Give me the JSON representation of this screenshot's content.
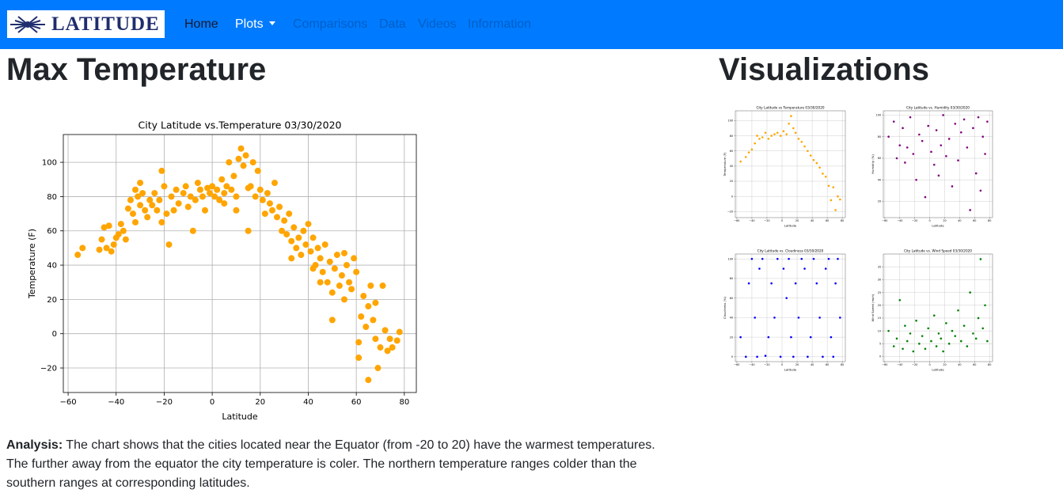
{
  "navbar": {
    "brand": "LATITUDE",
    "links": [
      "Home",
      "Plots",
      "Comparisons",
      "Data",
      "Videos",
      "Information"
    ]
  },
  "main": {
    "heading": "Max Temperature",
    "analysis": {
      "label": "Analysis:",
      "text": "The chart shows that the cities located near the Equator (from -20 to 20) have the warmest temperatures. The further away from the equator the city temperature is coler. The northern temperature ranges colder than the southern ranges at corresponding latitudes."
    }
  },
  "sidebar": {
    "heading": "Visualizations"
  },
  "chart_data": [
    {
      "type": "scatter",
      "title": "City Latitude vs.Temperature 03/30/2020",
      "x_label": "Latitude",
      "y_label": "Temperature (F)",
      "color": "#ffa500",
      "grid": true,
      "xlim": [
        -62,
        85
      ],
      "ylim": [
        -34.3,
        116.2
      ],
      "xticks": [
        {
          "value": -60,
          "label": "−60"
        },
        {
          "value": -40,
          "label": "−40"
        },
        {
          "value": -20,
          "label": "−20"
        },
        0,
        20,
        40,
        60,
        80
      ],
      "yticks": [
        {
          "value": -20,
          "label": "−20"
        },
        0,
        20,
        40,
        60,
        80,
        100
      ],
      "x": [
        -56,
        -54,
        -47,
        -46,
        -45,
        -44,
        -43,
        -42,
        -41,
        -40,
        -39,
        -38,
        -37,
        -36,
        -35,
        -34,
        -33,
        -32,
        -32,
        -31,
        -30,
        -29,
        -28,
        -27,
        -26,
        -25,
        -24,
        -23,
        -22,
        -21,
        -21,
        -20,
        -19,
        -18,
        -17,
        -16,
        -15,
        -14,
        -12,
        -11,
        -10,
        -9,
        -8,
        -7,
        -6,
        -5,
        -4,
        -3,
        -2,
        -1,
        0,
        1,
        2,
        3,
        4,
        5,
        6,
        7,
        8,
        9,
        10,
        11,
        12,
        13,
        14,
        15,
        16,
        17,
        18,
        19,
        20,
        21,
        22,
        23,
        24,
        25,
        26,
        27,
        28,
        29,
        30,
        31,
        32,
        33,
        34,
        35,
        36,
        37,
        38,
        39,
        40,
        41,
        42,
        43,
        44,
        45,
        46,
        47,
        48,
        49,
        50,
        51,
        52,
        53,
        54,
        55,
        56,
        57,
        58,
        59,
        60,
        61,
        61,
        62,
        63,
        64,
        65,
        65,
        66,
        67,
        68,
        68,
        69,
        70,
        71,
        72,
        73,
        74,
        75,
        77,
        78,
        45,
        55,
        50,
        33,
        42,
        -30,
        10,
        5,
        15
      ],
      "values": [
        46,
        50,
        49,
        55,
        62,
        50,
        63,
        48,
        52,
        56,
        58,
        64,
        60,
        55,
        73,
        78,
        70,
        84,
        65,
        80,
        75,
        82,
        72,
        68,
        78,
        75,
        82,
        72,
        78,
        95,
        65,
        86,
        70,
        52,
        80,
        72,
        84,
        76,
        82,
        86,
        74,
        80,
        60,
        78,
        88,
        84,
        80,
        72,
        85,
        82,
        86,
        80,
        84,
        78,
        90,
        82,
        86,
        100,
        84,
        92,
        80,
        102,
        108,
        98,
        104,
        85,
        86,
        100,
        80,
        95,
        84,
        78,
        70,
        82,
        76,
        72,
        88,
        68,
        74,
        60,
        66,
        58,
        70,
        54,
        62,
        50,
        56,
        46,
        60,
        52,
        64,
        48,
        56,
        40,
        50,
        44,
        36,
        52,
        30,
        42,
        24,
        38,
        46,
        28,
        34,
        20,
        40,
        30,
        26,
        44,
        36,
        -14,
        -5,
        10,
        22,
        4,
        -27,
        16,
        28,
        8,
        -3,
        18,
        -20,
        -8,
        28,
        2,
        -10,
        -3,
        -8,
        -4,
        1,
        30,
        47,
        8,
        44,
        38,
        88,
        72,
        76,
        60
      ]
    },
    {
      "type": "scatter",
      "title": "City Latitude vs Temperature 03/30/2020",
      "x_label": "Latitude",
      "y_label": "Temperature (F)",
      "color": "#ffa500",
      "grid": true,
      "xlim": [
        -62,
        84
      ],
      "ylim": [
        -28,
        113
      ],
      "xticks": [
        {
          "value": -60,
          "label": "−60"
        },
        {
          "value": -40,
          "label": "−40"
        },
        {
          "value": -20,
          "label": "−20"
        },
        0,
        20,
        40,
        60,
        80
      ],
      "yticks": [
        {
          "value": -20,
          "label": "−20"
        },
        0,
        20,
        40,
        60,
        80,
        100
      ],
      "x": [
        -55,
        -48,
        -44,
        -40,
        -36,
        -33,
        -30,
        -26,
        -22,
        -18,
        -14,
        -10,
        -6,
        -2,
        2,
        6,
        9,
        12,
        15,
        18,
        22,
        26,
        30,
        34,
        38,
        42,
        46,
        50,
        54,
        58,
        62,
        65,
        68,
        71,
        74,
        77
      ],
      "values": [
        46,
        52,
        58,
        62,
        70,
        80,
        76,
        78,
        84,
        76,
        80,
        82,
        84,
        80,
        86,
        82,
        96,
        106,
        90,
        84,
        76,
        72,
        66,
        60,
        54,
        48,
        44,
        38,
        30,
        26,
        14,
        -5,
        12,
        -18,
        0,
        -4
      ]
    },
    {
      "type": "scatter",
      "title": "City Latitude vs. Humidity 03/30/2020",
      "x_label": "Latitude",
      "y_label": "Humidity (%)",
      "color": "#800080",
      "grid": true,
      "xlim": [
        -62,
        84
      ],
      "ylim": [
        5,
        104
      ],
      "xticks": [
        {
          "value": -60,
          "label": "−60"
        },
        {
          "value": -40,
          "label": "−40"
        },
        {
          "value": -20,
          "label": "−20"
        },
        0,
        20,
        40,
        60,
        80
      ],
      "yticks": [
        20,
        40,
        60,
        80,
        100
      ],
      "x": [
        -55,
        -48,
        -44,
        -40,
        -36,
        -33,
        -30,
        -26,
        -22,
        -18,
        -14,
        -10,
        -6,
        -2,
        2,
        6,
        9,
        12,
        15,
        18,
        22,
        26,
        30,
        34,
        38,
        42,
        46,
        50,
        54,
        58,
        62,
        65,
        68,
        71,
        74,
        77
      ],
      "values": [
        80,
        94,
        60,
        72,
        88,
        56,
        70,
        98,
        64,
        40,
        82,
        76,
        24,
        90,
        66,
        54,
        86,
        44,
        72,
        100,
        62,
        78,
        34,
        92,
        58,
        84,
        96,
        70,
        12,
        88,
        46,
        98,
        30,
        80,
        64,
        94
      ]
    },
    {
      "type": "scatter",
      "title": "City Latitude vs. Cloudiness 03/30/2020",
      "x_label": "Latitude",
      "y_label": "Cloudiness (%)",
      "color": "#0000ff",
      "grid": true,
      "xlim": [
        -62,
        84
      ],
      "ylim": [
        -5,
        105
      ],
      "xticks": [
        {
          "value": -60,
          "label": "−60"
        },
        {
          "value": -40,
          "label": "−40"
        },
        {
          "value": -20,
          "label": "−20"
        },
        0,
        20,
        40,
        60,
        80
      ],
      "yticks": [
        0,
        20,
        40,
        60,
        80,
        100
      ],
      "x": [
        -55,
        -48,
        -44,
        -40,
        -36,
        -33,
        -30,
        -26,
        -22,
        -18,
        -14,
        -10,
        -6,
        -2,
        2,
        6,
        9,
        12,
        15,
        18,
        22,
        26,
        30,
        34,
        38,
        42,
        46,
        50,
        54,
        58,
        62,
        65,
        68,
        71,
        74,
        77
      ],
      "values": [
        20,
        0,
        75,
        100,
        40,
        0,
        90,
        100,
        1,
        20,
        75,
        40,
        100,
        0,
        90,
        60,
        100,
        20,
        0,
        75,
        40,
        100,
        90,
        0,
        20,
        100,
        75,
        40,
        0,
        90,
        100,
        20,
        0,
        75,
        100,
        40
      ]
    },
    {
      "type": "scatter",
      "title": "City Latitude vs. Wind Speed 03/30/2020",
      "x_label": "Latitude",
      "y_label": "Wind Speed (mph)",
      "color": "#008000",
      "grid": true,
      "xlim": [
        -62,
        84
      ],
      "ylim": [
        -2,
        40
      ],
      "xticks": [
        {
          "value": -60,
          "label": "−60"
        },
        {
          "value": -40,
          "label": "−40"
        },
        {
          "value": -20,
          "label": "−20"
        },
        0,
        20,
        40,
        60,
        80
      ],
      "yticks": [
        0,
        5,
        10,
        15,
        20,
        25,
        30,
        35
      ],
      "x": [
        -55,
        -48,
        -44,
        -40,
        -36,
        -33,
        -30,
        -26,
        -22,
        -18,
        -14,
        -10,
        -6,
        -2,
        2,
        6,
        9,
        12,
        15,
        18,
        22,
        26,
        30,
        34,
        38,
        42,
        46,
        50,
        54,
        58,
        62,
        65,
        68,
        71,
        74,
        77
      ],
      "values": [
        10,
        4,
        7,
        22,
        3,
        12,
        6,
        9,
        2,
        14,
        5,
        8,
        3,
        11,
        6,
        16,
        4,
        9,
        7,
        2,
        13,
        5,
        10,
        8,
        18,
        6,
        12,
        4,
        25,
        9,
        7,
        15,
        38,
        11,
        20,
        6
      ]
    }
  ]
}
